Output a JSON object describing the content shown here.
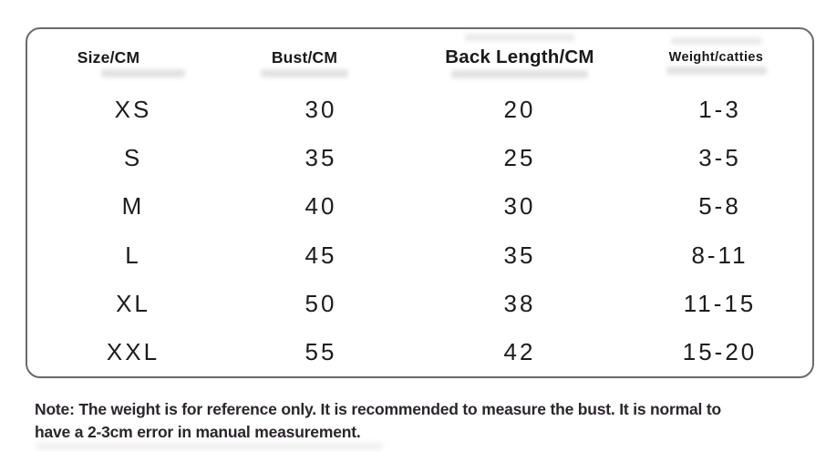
{
  "page": {
    "background_color": "#ffffff",
    "border_color": "#6a6a6a",
    "text_color": "#1d1d1d"
  },
  "size_chart": {
    "headers": [
      "Size/CM",
      "Bust/CM",
      "Back Length/CM",
      "Weight/catties"
    ],
    "rows": [
      [
        "XS",
        "30",
        "20",
        "1-3"
      ],
      [
        "S",
        "35",
        "25",
        "3-5"
      ],
      [
        "M",
        "40",
        "30",
        "5-8"
      ],
      [
        "L",
        "45",
        "35",
        "8-11"
      ],
      [
        "XL",
        "50",
        "38",
        "11-15"
      ],
      [
        "XXL",
        "55",
        "42",
        "15-20"
      ]
    ]
  },
  "note": {
    "line1": "Note: The weight is for reference only. It is recommended to measure the bust. It is normal to",
    "line2": "have a 2-3cm error in manual measurement."
  }
}
